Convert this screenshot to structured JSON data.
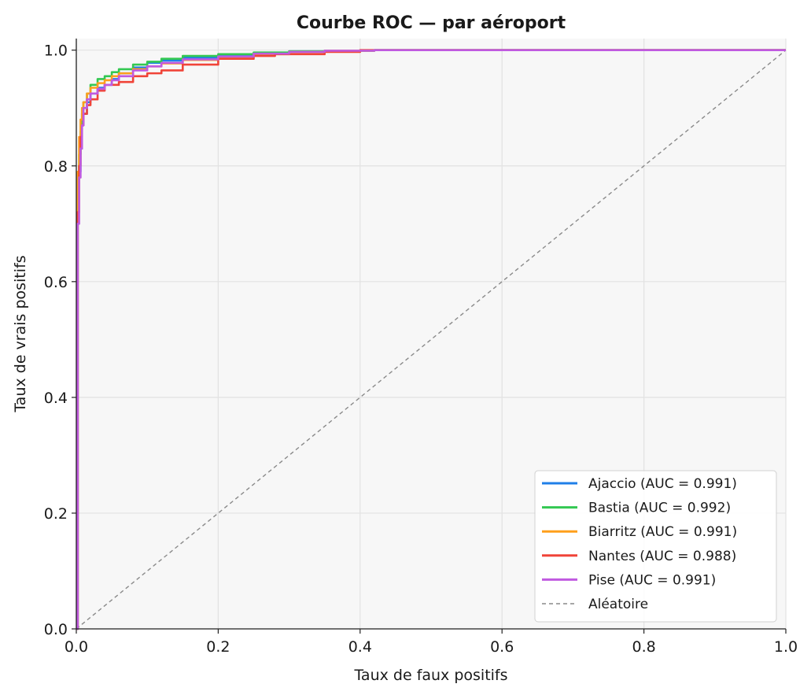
{
  "chart_data": {
    "type": "line",
    "title": "Courbe ROC — par aéroport",
    "xlabel": "Taux de faux positifs",
    "ylabel": "Taux de vrais positifs",
    "xlim": [
      0,
      1
    ],
    "ylim": [
      0,
      1.02
    ],
    "xticks": [
      0,
      0.2,
      0.4,
      0.6,
      0.8,
      1.0
    ],
    "yticks": [
      0,
      0.2,
      0.4,
      0.6,
      0.8,
      1.0
    ],
    "xtick_labels": [
      "0.0",
      "0.2",
      "0.4",
      "0.6",
      "0.8",
      "1.0"
    ],
    "ytick_labels": [
      "0.0",
      "0.2",
      "0.4",
      "0.6",
      "0.8",
      "1.0"
    ],
    "grid": true,
    "legend_position": "bottom-right",
    "series": [
      {
        "name": "Ajaccio (AUC = 0.991)",
        "color": "#1f7fe8",
        "x": [
          0,
          0.002,
          0.004,
          0.006,
          0.008,
          0.01,
          0.015,
          0.02,
          0.03,
          0.04,
          0.05,
          0.06,
          0.08,
          0.1,
          0.12,
          0.15,
          0.2,
          0.25,
          0.3,
          0.35,
          0.42,
          1.0
        ],
        "y": [
          0,
          0.74,
          0.79,
          0.83,
          0.87,
          0.89,
          0.91,
          0.925,
          0.935,
          0.94,
          0.95,
          0.96,
          0.97,
          0.978,
          0.982,
          0.987,
          0.99,
          0.995,
          0.998,
          0.999,
          1.0,
          1.0
        ]
      },
      {
        "name": "Bastia (AUC = 0.992)",
        "color": "#33c852",
        "x": [
          0,
          0.002,
          0.004,
          0.006,
          0.008,
          0.01,
          0.015,
          0.02,
          0.03,
          0.04,
          0.05,
          0.06,
          0.08,
          0.1,
          0.12,
          0.15,
          0.2,
          0.25,
          0.3,
          0.35,
          0.42,
          1.0
        ],
        "y": [
          0,
          0.77,
          0.82,
          0.86,
          0.89,
          0.91,
          0.925,
          0.94,
          0.95,
          0.955,
          0.962,
          0.967,
          0.975,
          0.98,
          0.985,
          0.99,
          0.993,
          0.996,
          0.998,
          0.999,
          1.0,
          1.0
        ]
      },
      {
        "name": "Biarritz (AUC = 0.991)",
        "color": "#ff9f1c",
        "x": [
          0,
          0.002,
          0.004,
          0.006,
          0.008,
          0.01,
          0.015,
          0.02,
          0.03,
          0.04,
          0.05,
          0.06,
          0.08,
          0.1,
          0.12,
          0.15,
          0.2,
          0.25,
          0.3,
          0.35,
          0.42,
          1.0
        ],
        "y": [
          0,
          0.79,
          0.85,
          0.88,
          0.9,
          0.91,
          0.925,
          0.935,
          0.943,
          0.948,
          0.955,
          0.96,
          0.967,
          0.972,
          0.977,
          0.983,
          0.988,
          0.993,
          0.997,
          0.999,
          1.0,
          1.0
        ]
      },
      {
        "name": "Nantes (AUC = 0.988)",
        "color": "#f04438",
        "x": [
          0,
          0.002,
          0.004,
          0.006,
          0.008,
          0.01,
          0.015,
          0.02,
          0.03,
          0.04,
          0.05,
          0.06,
          0.08,
          0.1,
          0.12,
          0.15,
          0.2,
          0.25,
          0.28,
          0.35,
          0.4,
          1.0
        ],
        "y": [
          0,
          0.72,
          0.8,
          0.85,
          0.87,
          0.89,
          0.905,
          0.915,
          0.93,
          0.94,
          0.94,
          0.945,
          0.955,
          0.96,
          0.965,
          0.975,
          0.985,
          0.99,
          0.993,
          0.997,
          1.0,
          1.0
        ]
      },
      {
        "name": "Pise (AUC = 0.991)",
        "color": "#c05ae0",
        "x": [
          0,
          0.002,
          0.004,
          0.006,
          0.008,
          0.01,
          0.015,
          0.02,
          0.03,
          0.04,
          0.05,
          0.06,
          0.08,
          0.1,
          0.12,
          0.15,
          0.2,
          0.25,
          0.3,
          0.35,
          0.42,
          1.0
        ],
        "y": [
          0,
          0.7,
          0.78,
          0.83,
          0.87,
          0.9,
          0.915,
          0.925,
          0.933,
          0.94,
          0.948,
          0.955,
          0.965,
          0.972,
          0.978,
          0.984,
          0.989,
          0.994,
          0.997,
          0.999,
          1.0,
          1.0
        ]
      }
    ],
    "reference_line": {
      "name": "Aléatoire",
      "color": "#8a8a8a",
      "x": [
        0,
        1
      ],
      "y": [
        0,
        1
      ]
    }
  }
}
